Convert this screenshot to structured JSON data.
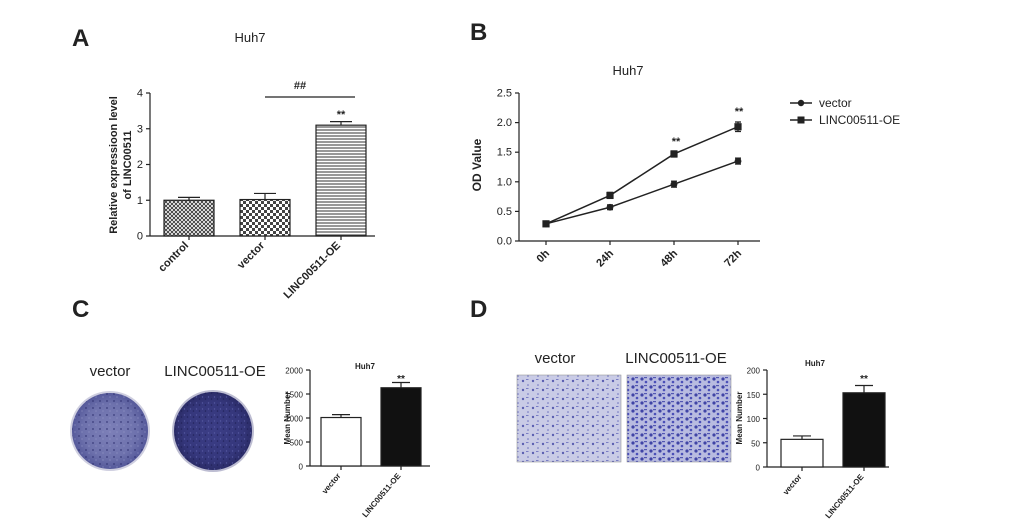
{
  "panels": {
    "A": {
      "label": "A"
    },
    "B": {
      "label": "B"
    },
    "C": {
      "label": "C",
      "photo_labels": [
        "vector",
        "LINC00511-OE"
      ]
    },
    "D": {
      "label": "D",
      "photo_labels": [
        "vector",
        "LINC00511-OE"
      ]
    }
  },
  "colors": {
    "stain": "#4a4aa0",
    "bar_black": "#111111",
    "line": "#222222"
  },
  "chart_data": [
    {
      "id": "A",
      "type": "bar",
      "title": "Huh7",
      "ylabel": "Relative expressioon level of LINC00511",
      "ylabel_lines": [
        "Relative expressioon level",
        "of LINC00511"
      ],
      "categories": [
        "control",
        "vector",
        "LINC00511-OE"
      ],
      "values": [
        1.0,
        1.02,
        3.1
      ],
      "errors": [
        0.08,
        0.17,
        0.1
      ],
      "patterns": [
        "dense-hatch",
        "checker",
        "horizontal-lines"
      ],
      "ylim": [
        0,
        4
      ],
      "yticks": [
        "0",
        "1",
        "2",
        "3",
        "4"
      ],
      "annotations": [
        "**",
        "##"
      ]
    },
    {
      "id": "B",
      "type": "line",
      "title": "Huh7",
      "ylabel": "OD Value",
      "x": [
        "0h",
        "24h",
        "48h",
        "72h"
      ],
      "series": [
        {
          "name": "vector",
          "values": [
            0.29,
            0.57,
            0.96,
            1.35
          ],
          "errors": [
            0.02,
            0.04,
            0.05,
            0.05
          ]
        },
        {
          "name": "LINC00511-OE",
          "values": [
            0.29,
            0.77,
            1.47,
            1.93
          ],
          "errors": [
            0.02,
            0.05,
            0.05,
            0.08
          ]
        }
      ],
      "ylim": [
        0,
        2.5
      ],
      "yticks": [
        "0.0",
        "0.5",
        "1.0",
        "1.5",
        "2.0",
        "2.5"
      ],
      "annotations": [
        "**",
        "**"
      ],
      "legend_position": "right"
    },
    {
      "id": "C",
      "type": "bar",
      "title": "Huh7",
      "ylabel": "Mean Number",
      "categories": [
        "vector",
        "LINC00511-OE"
      ],
      "values": [
        1010,
        1630
      ],
      "errors": [
        60,
        110
      ],
      "ylim": [
        0,
        2000
      ],
      "yticks": [
        "0",
        "500",
        "1000",
        "1500",
        "2000"
      ],
      "annotations": [
        "**"
      ]
    },
    {
      "id": "D",
      "type": "bar",
      "title": "Huh7",
      "ylabel": "Mean Number",
      "categories": [
        "vector",
        "LINC00511-OE"
      ],
      "values": [
        57,
        153
      ],
      "errors": [
        7,
        15
      ],
      "ylim": [
        0,
        200
      ],
      "yticks": [
        "0",
        "50",
        "100",
        "150",
        "200"
      ],
      "annotations": [
        "**"
      ]
    }
  ]
}
